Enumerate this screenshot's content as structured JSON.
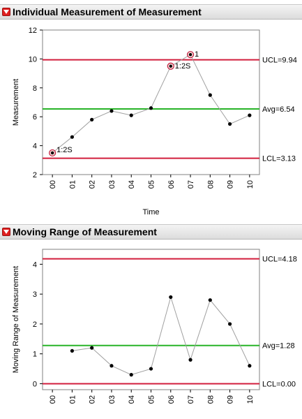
{
  "colors": {
    "limit_line": "#d21e3c",
    "center_line": "#28b428",
    "connector": "#a0a0a0",
    "point": "#000000",
    "flagged_ring": "#c02040"
  },
  "panels": [
    {
      "title": "Individual Measurement of Measurement",
      "icon": "disclosure-triangle-icon"
    },
    {
      "title": "Moving Range of Measurement",
      "icon": "disclosure-triangle-icon"
    }
  ],
  "chart_data": [
    {
      "type": "line",
      "title": "Individual Measurement of Measurement",
      "xlabel": "Time",
      "ylabel": "Measurement",
      "categories": [
        "00",
        "01",
        "02",
        "03",
        "04",
        "05",
        "06",
        "07",
        "08",
        "09",
        "10"
      ],
      "values": [
        3.5,
        4.6,
        5.8,
        6.4,
        6.1,
        6.6,
        9.5,
        10.3,
        7.5,
        5.5,
        6.1
      ],
      "ylim": [
        2,
        12
      ],
      "yticks": [
        "2",
        "4",
        "6",
        "8",
        "10",
        "12"
      ],
      "limits": [
        {
          "label": "UCL=9.94",
          "value": 9.94,
          "kind": "limit"
        },
        {
          "label": "Avg=6.54",
          "value": 6.54,
          "kind": "center"
        },
        {
          "label": "LCL=3.13",
          "value": 3.13,
          "kind": "limit"
        }
      ],
      "flags": [
        {
          "index": 0,
          "label": "1:2S"
        },
        {
          "index": 6,
          "label": "1:2S"
        },
        {
          "index": 7,
          "label": "1"
        }
      ]
    },
    {
      "type": "line",
      "title": "Moving Range of Measurement",
      "ylabel": "Moving Range of Measurement",
      "categories": [
        "00",
        "01",
        "02",
        "03",
        "04",
        "05",
        "06",
        "07",
        "08",
        "09",
        "10"
      ],
      "values": [
        null,
        1.1,
        1.2,
        0.6,
        0.3,
        0.5,
        2.9,
        0.8,
        2.8,
        2.0,
        0.6
      ],
      "ylim": [
        -0.2,
        4.5
      ],
      "yticks": [
        "0",
        "1",
        "2",
        "3",
        "4"
      ],
      "limits": [
        {
          "label": "UCL=4.18",
          "value": 4.18,
          "kind": "limit"
        },
        {
          "label": "Avg=1.28",
          "value": 1.28,
          "kind": "center"
        },
        {
          "label": "LCL=0.00",
          "value": 0.0,
          "kind": "limit"
        }
      ],
      "flags": []
    }
  ]
}
